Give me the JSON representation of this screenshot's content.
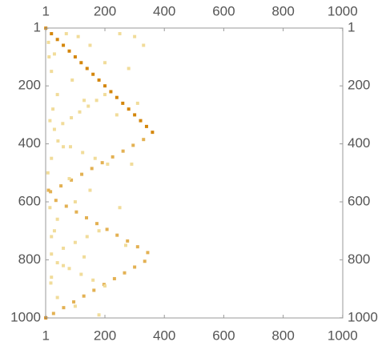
{
  "chart_data": {
    "type": "matrix",
    "xlim": [
      0.5,
      1000.5
    ],
    "ylim": [
      0.5,
      1000.5
    ],
    "y_reversed": true,
    "xticks": [
      1,
      200,
      400,
      600,
      800,
      1000
    ],
    "yticks": [
      1,
      200,
      400,
      600,
      800,
      1000
    ],
    "color_low": "#f1dc9a",
    "color_high": "#d4860b",
    "x": [
      1,
      20,
      40,
      60,
      80,
      100,
      120,
      140,
      160,
      180,
      200,
      220,
      240,
      260,
      280,
      300,
      320,
      340,
      360,
      330,
      295,
      261,
      226,
      191,
      156,
      122,
      87,
      52,
      17,
      35,
      70,
      104,
      138,
      173,
      207,
      241,
      276,
      310,
      344,
      334,
      300,
      266,
      232,
      197,
      163,
      129,
      95,
      61,
      27,
      1,
      200,
      172,
      144,
      115,
      87,
      58,
      30,
      42,
      84,
      125,
      167,
      209,
      180,
      140,
      100,
      60,
      20,
      40,
      80,
      120,
      160,
      200,
      10,
      30,
      70,
      110,
      150,
      250,
      300,
      330,
      200,
      280,
      90,
      20,
      40,
      130,
      240,
      310,
      15,
      60,
      20,
      80,
      150,
      290,
      15,
      40,
      100,
      250,
      20,
      60,
      130,
      270,
      20,
      40,
      100,
      180,
      12,
      25,
      8,
      30,
      18,
      10
    ],
    "y": [
      1,
      20,
      40,
      60,
      80,
      100,
      120,
      140,
      160,
      180,
      200,
      220,
      240,
      260,
      280,
      300,
      320,
      340,
      360,
      385,
      405,
      425,
      445,
      465,
      485,
      505,
      525,
      545,
      565,
      595,
      615,
      635,
      655,
      675,
      695,
      715,
      735,
      755,
      775,
      805,
      825,
      845,
      865,
      885,
      905,
      925,
      945,
      965,
      985,
      1000,
      230,
      250,
      270,
      290,
      310,
      330,
      350,
      390,
      410,
      430,
      450,
      470,
      700,
      720,
      740,
      760,
      780,
      810,
      830,
      850,
      870,
      890,
      50,
      90,
      20,
      30,
      60,
      20,
      30,
      60,
      120,
      140,
      180,
      150,
      230,
      250,
      300,
      260,
      320,
      410,
      450,
      520,
      560,
      470,
      620,
      660,
      600,
      620,
      720,
      820,
      790,
      750,
      860,
      930,
      960,
      990,
      100,
      280,
      500,
      700,
      880,
      560
    ],
    "values": [
      3,
      3,
      3,
      3,
      3,
      3,
      3,
      3,
      3,
      3,
      3,
      3,
      3,
      3,
      3,
      3,
      3,
      3,
      3,
      2,
      2,
      2,
      2,
      2,
      2,
      2,
      2,
      2,
      2,
      2,
      2,
      2,
      2,
      2,
      2,
      2,
      2,
      2,
      2,
      2,
      2,
      2,
      2,
      2,
      2,
      2,
      2,
      2,
      2,
      3,
      1,
      1,
      1,
      1,
      1,
      1,
      1,
      1,
      1,
      1,
      1,
      1,
      1,
      1,
      1,
      1,
      1,
      1,
      1,
      1,
      1,
      1,
      1,
      1,
      1,
      1,
      1,
      1,
      1,
      1,
      1,
      1,
      1,
      1,
      1,
      1,
      1,
      1,
      1,
      1,
      1,
      1,
      1,
      1,
      1,
      1,
      1,
      1,
      1,
      1,
      1,
      1,
      1,
      1,
      1,
      1,
      1,
      1,
      1,
      1,
      1,
      2
    ]
  }
}
